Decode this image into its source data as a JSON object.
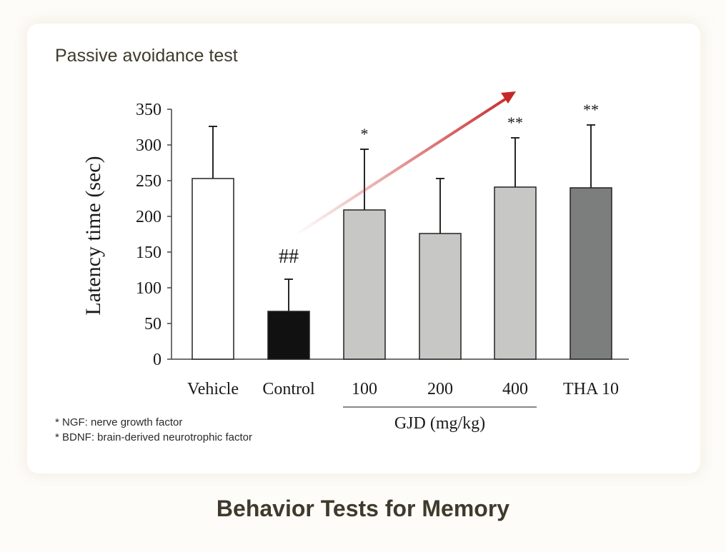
{
  "card": {
    "title": "Passive avoidance test",
    "footnotes": [
      "* NGF: nerve growth factor",
      "* BDNF: brain-derived neurotrophic factor"
    ]
  },
  "caption": "Behavior Tests for Memory",
  "chart_data": {
    "type": "bar",
    "title": "",
    "xlabel": "",
    "ylabel": "Latency time (sec)",
    "ylim": [
      0,
      350
    ],
    "yticks": [
      0,
      50,
      100,
      150,
      200,
      250,
      300,
      350
    ],
    "grid": false,
    "categories": [
      "Vehicle",
      "Control",
      "100",
      "200",
      "400",
      "THA 10"
    ],
    "values": [
      253,
      67,
      209,
      176,
      241,
      240
    ],
    "error_upper": [
      326,
      112,
      294,
      253,
      310,
      328
    ],
    "bar_colors": [
      "#ffffff",
      "#111111",
      "#c7c7c5",
      "#c7c7c5",
      "#c7c7c5",
      "#7b7e7c"
    ],
    "annotations": [
      "",
      "##",
      "*",
      "",
      "**",
      "**"
    ],
    "group_label": "GJD (mg/kg)",
    "group_members": [
      "100",
      "200",
      "400"
    ],
    "trend_arrow_color": "#c62828"
  }
}
